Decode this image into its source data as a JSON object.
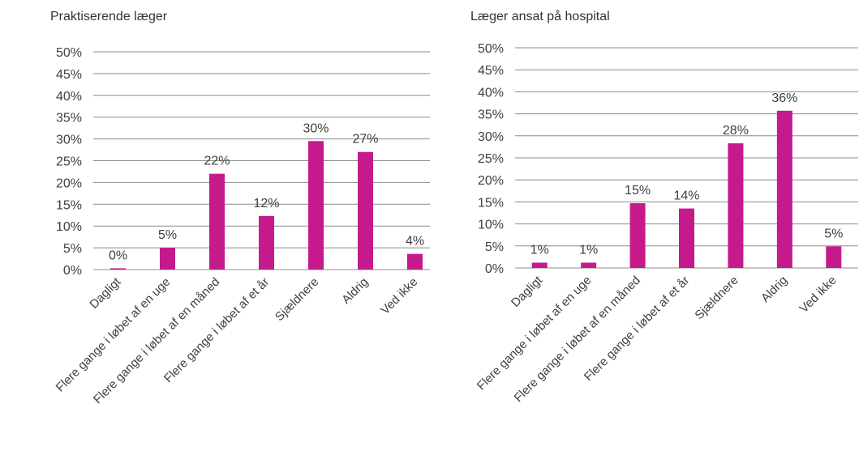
{
  "colors": {
    "bar": "#c41a8c",
    "grid": "#8c8c8c",
    "text": "#404040"
  },
  "chart_data": [
    {
      "type": "bar",
      "title": "Praktiserende læger",
      "xlabel": "",
      "ylabel": "",
      "ylim": [
        0,
        50
      ],
      "ytick_labels": [
        "0%",
        "5%",
        "10%",
        "15%",
        "20%",
        "25%",
        "30%",
        "35%",
        "40%",
        "45%",
        "50%"
      ],
      "grid": true,
      "legend": "none",
      "categories": [
        "Dagligt",
        "Flere gange i løbet af en uge",
        "Flere gange i løbet af en måned",
        "Flere gange i løbet af et år",
        "Sjældnere",
        "Aldrig",
        "Ved ikke"
      ],
      "values": [
        0.3,
        5,
        22,
        12.3,
        29.5,
        27,
        3.6
      ],
      "data_labels": [
        "0%",
        "5%",
        "22%",
        "12%",
        "30%",
        "27%",
        "4%"
      ]
    },
    {
      "type": "bar",
      "title": "Læger ansat på hospital",
      "xlabel": "",
      "ylabel": "",
      "ylim": [
        0,
        50
      ],
      "ytick_labels": [
        "0%",
        "5%",
        "10%",
        "15%",
        "20%",
        "25%",
        "30%",
        "35%",
        "40%",
        "45%",
        "50%"
      ],
      "grid": true,
      "legend": "none",
      "categories": [
        "Dagligt",
        "Flere gange i løbet af en uge",
        "Flere gange i løbet af en måned",
        "Flere gange i løbet af et år",
        "Sjældnere",
        "Aldrig",
        "Ved ikke"
      ],
      "values": [
        1.2,
        1.2,
        14.7,
        13.5,
        28.3,
        35.7,
        4.9
      ],
      "data_labels": [
        "1%",
        "1%",
        "15%",
        "14%",
        "28%",
        "36%",
        "5%"
      ]
    }
  ]
}
